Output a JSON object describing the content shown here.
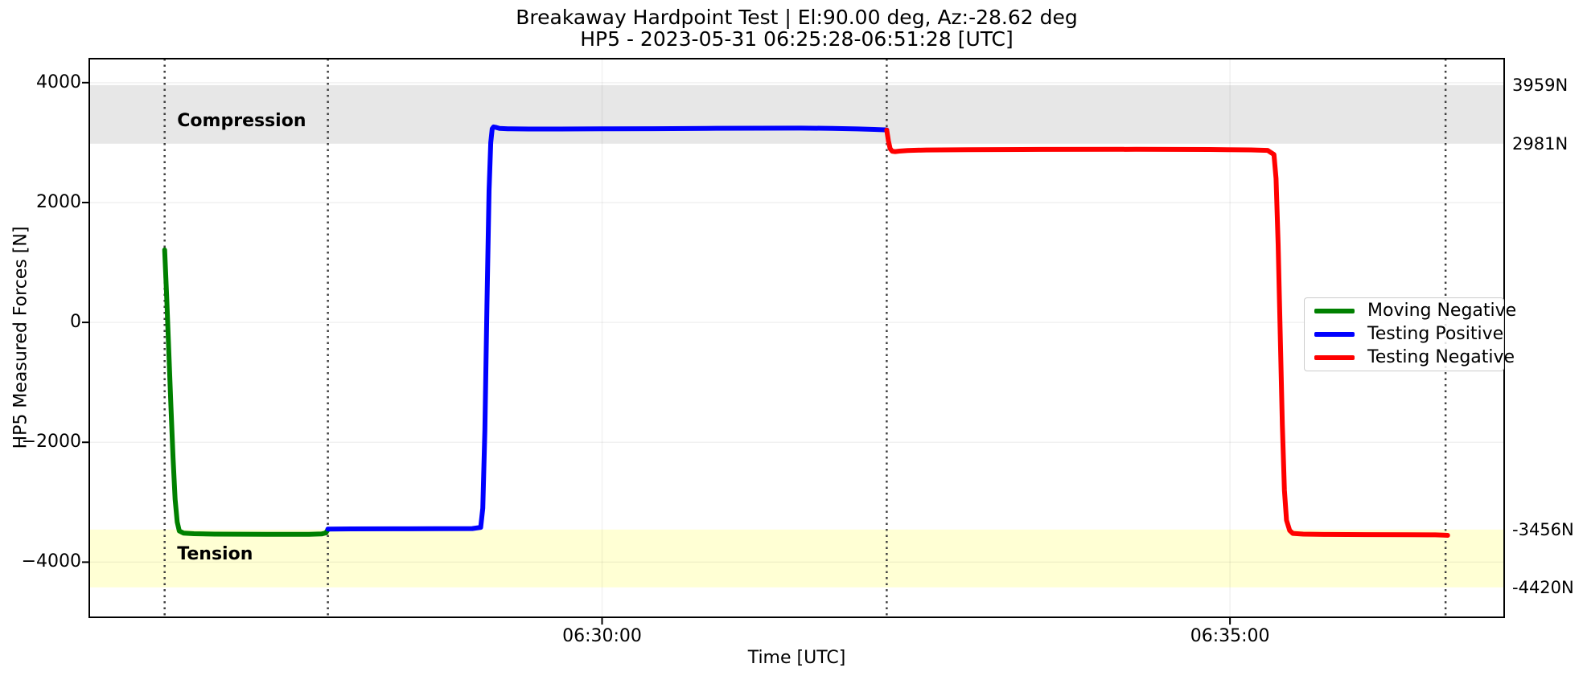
{
  "figure": {
    "title_line1": "Breakaway Hardpoint Test | El:90.00 deg, Az:-28.62 deg",
    "title_line2": "HP5 - 2023-05-31 06:25:28-06:51:28 [UTC]",
    "xlabel": "Time [UTC]",
    "ylabel": "HP5 Measured Forces [N]",
    "background": "#ffffff"
  },
  "chart_data": {
    "type": "line",
    "title": "Breakaway Hardpoint Test | El:90.00 deg, Az:-28.62 deg\nHP5 - 2023-05-31 06:25:28-06:51:28 [UTC]",
    "xlabel": "Time [UTC]",
    "ylabel": "HP5 Measured Forces [N]",
    "x_unit": "seconds relative to 06:30:00 UTC",
    "xlim": [
      -245,
      431
    ],
    "ylim": [
      -4920,
      4400
    ],
    "grid": true,
    "grid_color": "rgba(0,0,0,0.055)",
    "frame_color": "#000000",
    "xticks": [
      {
        "x": 0,
        "label": "06:30:00"
      },
      {
        "x": 300,
        "label": "06:35:00"
      }
    ],
    "yticks": [
      {
        "y": 4000,
        "label": "4000"
      },
      {
        "y": 2000,
        "label": "2000"
      },
      {
        "y": 0,
        "label": "0"
      },
      {
        "y": -2000,
        "label": "−2000"
      },
      {
        "y": -4000,
        "label": "−4000"
      }
    ],
    "bands": [
      {
        "name": "compression",
        "ymin": 2981,
        "ymax": 3959,
        "color": "#e7e7e7",
        "label": "Compression",
        "label_x": -203,
        "label_y": 3350
      },
      {
        "name": "tension",
        "ymin": -4420,
        "ymax": -3456,
        "color": "#ffffd4",
        "label": "Tension",
        "label_x": -203,
        "label_y": -3880
      }
    ],
    "threshold_labels": [
      {
        "text": "3959N",
        "y": 3959
      },
      {
        "text": "2981N",
        "y": 2981
      },
      {
        "text": "-3456N",
        "y": -3456
      },
      {
        "text": "-4420N",
        "y": -4420
      }
    ],
    "vlines": {
      "x": [
        -209,
        -131,
        136,
        403
      ],
      "color": "#404040",
      "style": "dotted"
    },
    "legend": {
      "position": "center right",
      "entries": [
        {
          "label": "Moving Negative",
          "color": "#008000"
        },
        {
          "label": "Testing Positive",
          "color": "#0000ff"
        },
        {
          "label": "Testing Negative",
          "color": "#ff0000"
        }
      ]
    },
    "series": [
      {
        "name": "Moving Negative",
        "color": "#008000",
        "linewidth": 6,
        "points": [
          [
            -209,
            1210
          ],
          [
            -208,
            400
          ],
          [
            -207,
            -500
          ],
          [
            -206,
            -1400
          ],
          [
            -205,
            -2250
          ],
          [
            -204,
            -2950
          ],
          [
            -203,
            -3330
          ],
          [
            -202,
            -3480
          ],
          [
            -200,
            -3515
          ],
          [
            -195,
            -3525
          ],
          [
            -185,
            -3532
          ],
          [
            -160,
            -3536
          ],
          [
            -140,
            -3535
          ],
          [
            -134,
            -3530
          ],
          [
            -132,
            -3512
          ],
          [
            -131,
            -3458
          ]
        ]
      },
      {
        "name": "Testing Positive",
        "color": "#0000ff",
        "linewidth": 6,
        "points": [
          [
            -131,
            -3448
          ],
          [
            -120,
            -3445
          ],
          [
            -100,
            -3443
          ],
          [
            -80,
            -3442
          ],
          [
            -62,
            -3440
          ],
          [
            -58,
            -3420
          ],
          [
            -57,
            -3100
          ],
          [
            -56,
            -1800
          ],
          [
            -55,
            300
          ],
          [
            -54,
            2200
          ],
          [
            -53.2,
            3000
          ],
          [
            -52.5,
            3230
          ],
          [
            -51.8,
            3262
          ],
          [
            -50.5,
            3252
          ],
          [
            -49,
            3238
          ],
          [
            -45,
            3230
          ],
          [
            -35,
            3226
          ],
          [
            -20,
            3226
          ],
          [
            0,
            3229
          ],
          [
            25,
            3232
          ],
          [
            50,
            3237
          ],
          [
            75,
            3240
          ],
          [
            95,
            3242
          ],
          [
            110,
            3238
          ],
          [
            122,
            3228
          ],
          [
            130,
            3220
          ],
          [
            136,
            3212
          ]
        ]
      },
      {
        "name": "Testing Negative",
        "color": "#ff0000",
        "linewidth": 6,
        "points": [
          [
            136,
            3208
          ],
          [
            136.8,
            3030
          ],
          [
            137.6,
            2900
          ],
          [
            138.6,
            2856
          ],
          [
            140,
            2850
          ],
          [
            142,
            2858
          ],
          [
            146,
            2868
          ],
          [
            155,
            2876
          ],
          [
            175,
            2882
          ],
          [
            210,
            2886
          ],
          [
            255,
            2887
          ],
          [
            290,
            2884
          ],
          [
            310,
            2878
          ],
          [
            318,
            2870
          ],
          [
            321,
            2800
          ],
          [
            322,
            2400
          ],
          [
            323,
            1300
          ],
          [
            324,
            -200
          ],
          [
            325,
            -1700
          ],
          [
            326,
            -2800
          ],
          [
            327,
            -3300
          ],
          [
            328.5,
            -3470
          ],
          [
            330,
            -3520
          ],
          [
            335,
            -3532
          ],
          [
            345,
            -3538
          ],
          [
            365,
            -3540
          ],
          [
            385,
            -3542
          ],
          [
            398,
            -3544
          ],
          [
            402,
            -3550
          ],
          [
            404,
            -3552
          ]
        ]
      }
    ]
  }
}
